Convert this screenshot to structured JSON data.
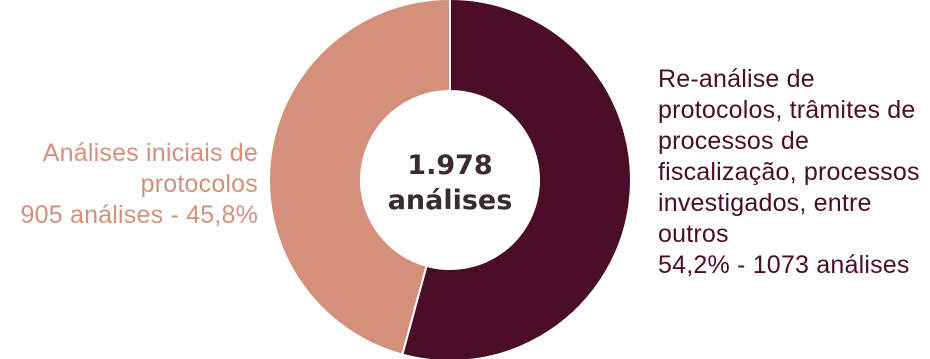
{
  "colors": {
    "primary": "#4a0d28",
    "secondary": "#d4907a",
    "center_text": "#3b2a2e"
  },
  "chart_data": {
    "type": "pie",
    "variant": "donut",
    "center": {
      "value": "1.978",
      "unit": "análises"
    },
    "slices": [
      {
        "label_lines": [
          "Re-análise de",
          "protocolos, trâmites de",
          "processos de",
          "fiscalização, processos",
          "investigados, entre",
          "outros"
        ],
        "detail": "54,2% - 1073 análises",
        "value": 1073,
        "percent": 54.2,
        "color": "#4a0d28"
      },
      {
        "label_lines": [
          "Análises iniciais de",
          "protocolos"
        ],
        "detail": "905 análises - 45,8%",
        "value": 905,
        "percent": 45.8,
        "color": "#d4907a"
      }
    ]
  }
}
